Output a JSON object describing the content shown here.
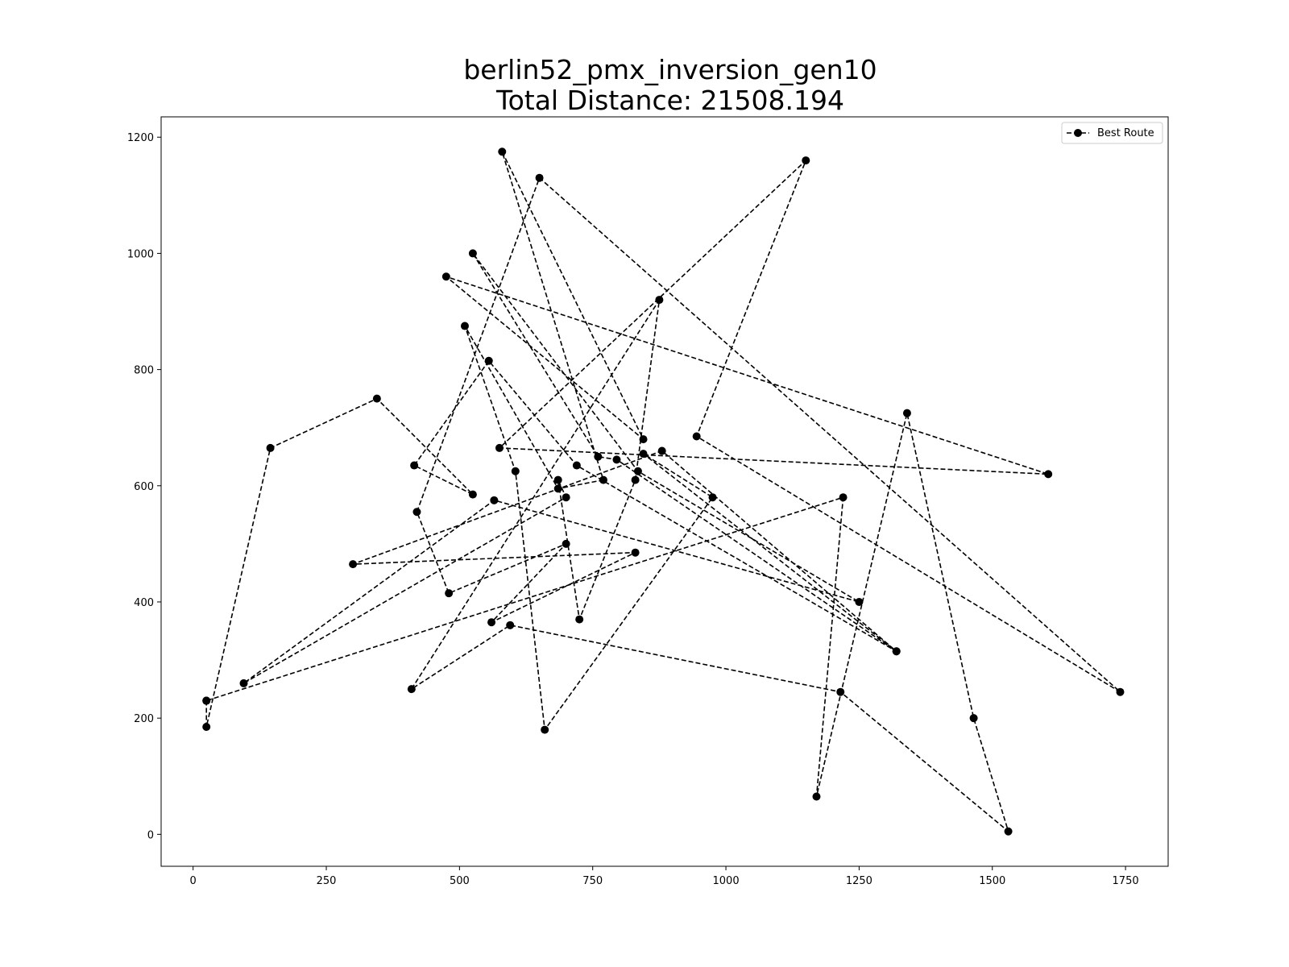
{
  "chart_data": {
    "type": "line",
    "title": [
      "berlin52_pmx_inversion_gen10",
      "Total Distance: 21508.194"
    ],
    "xlabel": "",
    "ylabel": "",
    "xlim": [
      -60,
      1830
    ],
    "ylim": [
      -55,
      1235
    ],
    "xticks": [
      0,
      250,
      500,
      750,
      1000,
      1250,
      1500,
      1750
    ],
    "yticks": [
      0,
      200,
      400,
      600,
      800,
      1000,
      1200
    ],
    "grid": false,
    "legend_position": "top-right",
    "series": [
      {
        "name": "Best Route",
        "style": "dashed line with circle markers",
        "color": "#000000",
        "points": [
          [
            25,
            230
          ],
          [
            25,
            185
          ],
          [
            145,
            665
          ],
          [
            345,
            750
          ],
          [
            525,
            585
          ],
          [
            415,
            635
          ],
          [
            555,
            815
          ],
          [
            720,
            635
          ],
          [
            1320,
            315
          ],
          [
            880,
            660
          ],
          [
            300,
            465
          ],
          [
            830,
            485
          ],
          [
            560,
            365
          ],
          [
            700,
            500
          ],
          [
            480,
            415
          ],
          [
            420,
            555
          ],
          [
            650,
            1130
          ],
          [
            1740,
            245
          ],
          [
            945,
            685
          ],
          [
            1150,
            1160
          ],
          [
            575,
            665
          ],
          [
            1605,
            620
          ],
          [
            475,
            960
          ],
          [
            845,
            680
          ],
          [
            580,
            1175
          ],
          [
            770,
            610
          ],
          [
            685,
            595
          ],
          [
            510,
            875
          ],
          [
            605,
            625
          ],
          [
            660,
            180
          ],
          [
            975,
            580
          ],
          [
            845,
            655
          ],
          [
            1320,
            315
          ],
          [
            795,
            645
          ],
          [
            760,
            650
          ],
          [
            525,
            1000
          ],
          [
            835,
            625
          ],
          [
            1250,
            400
          ],
          [
            565,
            575
          ],
          [
            95,
            260
          ],
          [
            700,
            580
          ],
          [
            685,
            610
          ],
          [
            725,
            370
          ],
          [
            830,
            610
          ],
          [
            875,
            920
          ],
          [
            410,
            250
          ],
          [
            595,
            360
          ],
          [
            1215,
            245
          ],
          [
            1530,
            5
          ],
          [
            1465,
            200
          ],
          [
            1340,
            725
          ],
          [
            1170,
            65
          ],
          [
            1220,
            580
          ],
          [
            25,
            230
          ]
        ]
      }
    ]
  }
}
